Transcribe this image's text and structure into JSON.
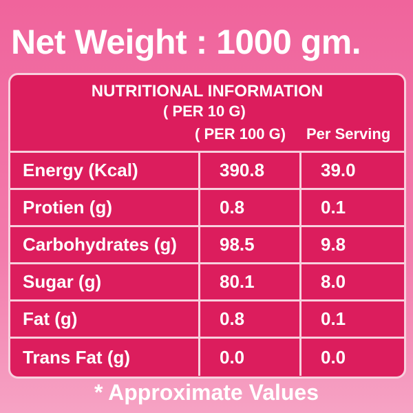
{
  "header": {
    "title": "Net Weight : 1000 gm."
  },
  "table": {
    "title": "NUTRITIONAL INFORMATION",
    "subtitle": "( PER 10 G)",
    "columns": [
      "( PER 100 G)",
      "Per Serving"
    ],
    "rows": [
      [
        "Energy (Kcal)",
        "390.8",
        "39.0"
      ],
      [
        "Protien (g)",
        "0.8",
        "0.1"
      ],
      [
        "Carbohydrates (g)",
        "98.5",
        "9.8"
      ],
      [
        "Sugar (g)",
        "80.1",
        "8.0"
      ],
      [
        "Fat (g)",
        "0.8",
        "0.1"
      ],
      [
        "Trans Fat (g)",
        "0.0",
        "0.0"
      ]
    ]
  },
  "footer": {
    "note": "* Approximate Values"
  }
}
